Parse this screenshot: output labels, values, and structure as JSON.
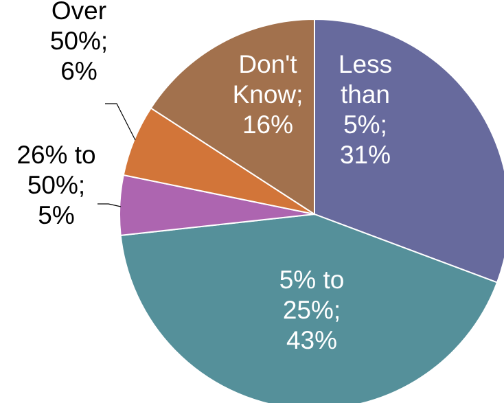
{
  "chart_data": {
    "type": "pie",
    "start_angle_deg": 0,
    "direction": "clockwise",
    "slices": [
      {
        "label": "Less than 5%",
        "value": 31,
        "color": "#676a9d",
        "label_color": "#ffffff",
        "label_lines": [
          "Less",
          "than",
          "5%;",
          "31%"
        ]
      },
      {
        "label": "5% to 25%",
        "value": 43,
        "color": "#55909a",
        "label_color": "#ffffff",
        "label_lines": [
          "5% to",
          "25%;",
          "43%"
        ]
      },
      {
        "label": "26% to 50%",
        "value": 5,
        "color": "#ad65b0",
        "label_color": "#000000",
        "label_lines": [
          "26% to",
          "50%;",
          "5%"
        ]
      },
      {
        "label": "Over 50%",
        "value": 6,
        "color": "#d27539",
        "label_color": "#000000",
        "label_lines": [
          "Over",
          "50%;",
          "6%"
        ]
      },
      {
        "label": "Don't Know",
        "value": 16,
        "color": "#a2714d",
        "label_color": "#ffffff",
        "label_lines": [
          "Don't",
          "Know;",
          "16%"
        ]
      }
    ],
    "legend": "none"
  }
}
